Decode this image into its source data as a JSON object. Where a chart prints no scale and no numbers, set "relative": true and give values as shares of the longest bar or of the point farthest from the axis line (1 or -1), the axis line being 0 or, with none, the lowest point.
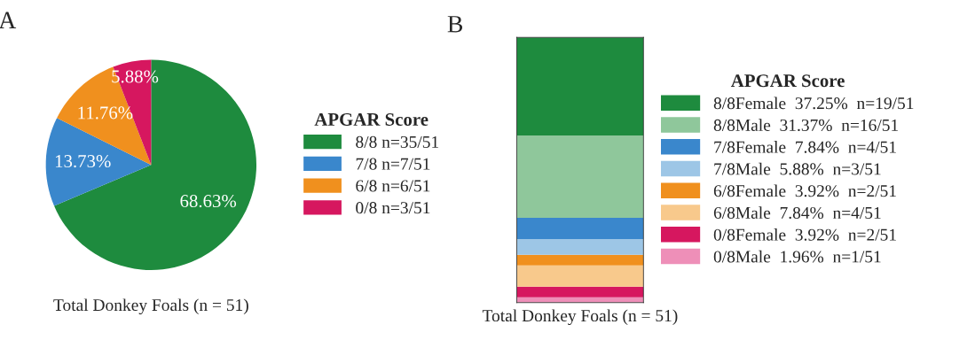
{
  "chart_data": [
    {
      "type": "pie",
      "title": "A",
      "xlabel": "Total Donkey Foals (n = 51)",
      "legend_title": "APGAR Score",
      "legend": "right",
      "categories": [
        "8/8 n=35/51",
        "7/8 n=7/51",
        "6/8 n=6/51",
        "0/8 n=3/51"
      ],
      "values": [
        68.63,
        13.73,
        11.76,
        5.88
      ],
      "value_labels": [
        "68.63%",
        "13.73%",
        "11.76%",
        "5.88%"
      ],
      "colors": [
        "#1e8b3e",
        "#3a87cc",
        "#f0901e",
        "#d6175f"
      ]
    },
    {
      "type": "bar",
      "title": "B",
      "xlabel": "Total Donkey Foals (n = 51)",
      "legend_title": "APGAR Score",
      "legend": "right",
      "stacked": true,
      "relative": true,
      "categories": [
        null
      ],
      "series": [
        {
          "name": "0/8Male  1.96%  n=1/51",
          "color": "#ee8fb8",
          "values": [
            0.02
          ]
        },
        {
          "name": "0/8Female  3.92%  n=2/51",
          "color": "#d6175f",
          "values": [
            0.04
          ]
        },
        {
          "name": "6/8Male  7.84%  n=4/51",
          "color": "#f8c98c",
          "values": [
            0.08
          ]
        },
        {
          "name": "6/8Female  3.92%  n=2/51",
          "color": "#f0901e",
          "values": [
            0.04
          ]
        },
        {
          "name": "7/8Male  5.88%  n=3/51",
          "color": "#9dc6e6",
          "values": [
            0.06
          ]
        },
        {
          "name": "7/8Female  7.84%  n=4/51",
          "color": "#3a87cc",
          "values": [
            0.08
          ]
        },
        {
          "name": "8/8Male  31.37%  n=16/51",
          "color": "#8fc79b",
          "values": [
            0.31
          ]
        },
        {
          "name": "8/8Female  37.25%  n=19/51",
          "color": "#1e8b3e",
          "values": [
            0.37
          ]
        }
      ]
    }
  ]
}
